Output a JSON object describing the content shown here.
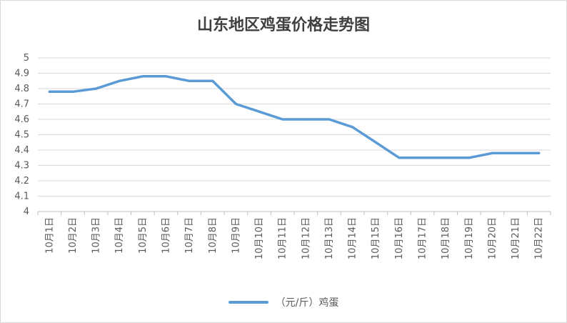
{
  "colors": {
    "series": "#5b9bd5",
    "grid": "#d9d9d9",
    "axis": "#bfbfbf",
    "text": "#595959"
  },
  "chart_data": {
    "type": "line",
    "title": "山东地区鸡蛋价格走势图",
    "xlabel": "",
    "ylabel": "",
    "ylim": [
      4,
      5
    ],
    "yticks": [
      "5",
      "4.9",
      "4.8",
      "4.7",
      "4.6",
      "4.5",
      "4.4",
      "4.3",
      "4.2",
      "4.1",
      "4"
    ],
    "grid": true,
    "legend_position": "bottom",
    "categories": [
      "10月1日",
      "10月2日",
      "10月3日",
      "10月4日",
      "10月5日",
      "10月6日",
      "10月7日",
      "10月8日",
      "10月9日",
      "10月10日",
      "10月11日",
      "10月12日",
      "10月13日",
      "10月14日",
      "10月15日",
      "10月16日",
      "10月17日",
      "10月18日",
      "10月19日",
      "10月20日",
      "10月21日",
      "10月22日"
    ],
    "series": [
      {
        "name": "（元/斤）鸡蛋",
        "values": [
          4.78,
          4.78,
          4.8,
          4.85,
          4.88,
          4.88,
          4.85,
          4.85,
          4.7,
          4.65,
          4.6,
          4.6,
          4.6,
          4.55,
          4.45,
          4.35,
          4.35,
          4.35,
          4.35,
          4.38,
          4.38,
          4.38
        ]
      }
    ]
  }
}
